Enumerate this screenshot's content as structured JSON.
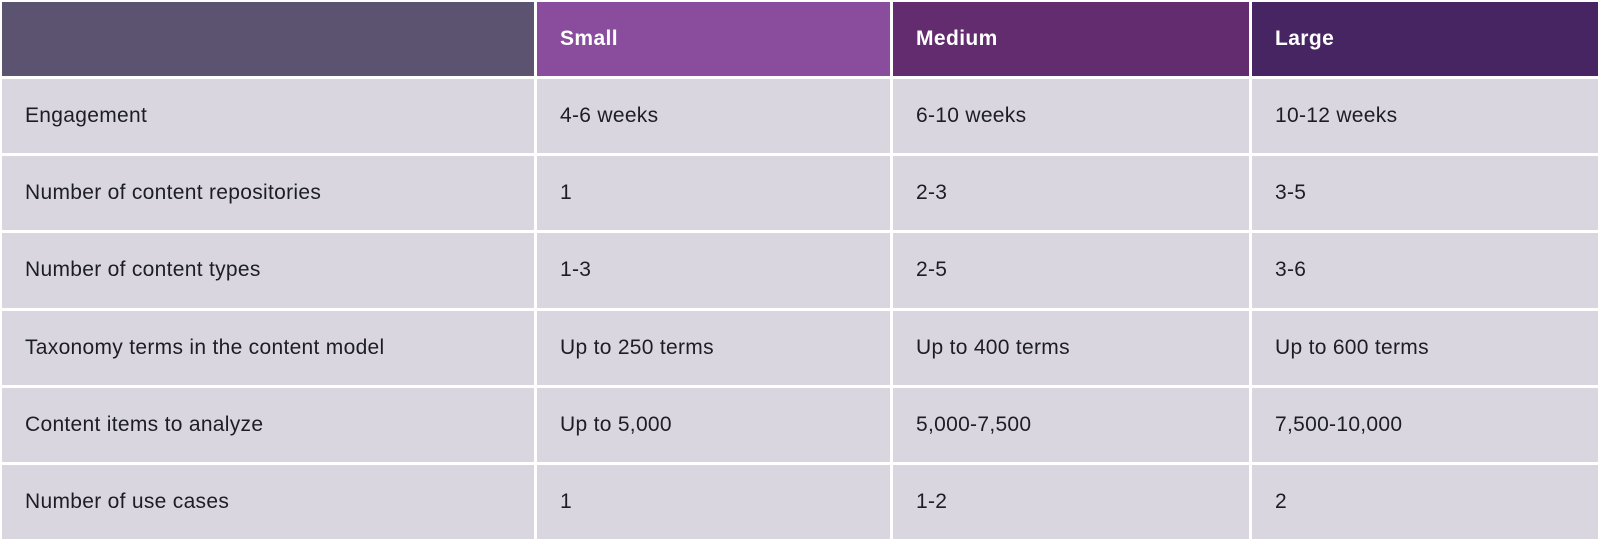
{
  "colors": {
    "corner_header_bg": "#5C5370",
    "small_header_bg": "#8A4C9D",
    "medium_header_bg": "#632C6E",
    "large_header_bg": "#472563",
    "body_cell_bg": "#D9D6E0",
    "divider": "#FFFFFF",
    "header_text": "#FFFFFF",
    "body_text": "#1D1D26"
  },
  "table": {
    "column_headers": [
      "",
      "Small",
      "Medium",
      "Large"
    ],
    "rows": [
      {
        "label": "Engagement",
        "values": [
          "4-6 weeks",
          "6-10 weeks",
          "10-12 weeks"
        ]
      },
      {
        "label": "Number of content repositories",
        "values": [
          "1",
          "2-3",
          "3-5"
        ]
      },
      {
        "label": "Number of content types",
        "values": [
          "1-3",
          "2-5",
          "3-6"
        ]
      },
      {
        "label": "Taxonomy terms in the content model",
        "values": [
          "Up to 250 terms",
          "Up to 400 terms",
          "Up to 600 terms"
        ]
      },
      {
        "label": "Content items to analyze",
        "values": [
          "Up to 5,000",
          "5,000-7,500",
          "7,500-10,000"
        ]
      },
      {
        "label": "Number of use cases",
        "values": [
          "1",
          "1-2",
          "2"
        ]
      }
    ]
  },
  "chart_data": {
    "type": "table",
    "columns": [
      "",
      "Small",
      "Medium",
      "Large"
    ],
    "rows": [
      [
        "Engagement",
        "4-6 weeks",
        "6-10 weeks",
        "10-12 weeks"
      ],
      [
        "Number of content repositories",
        "1",
        "2-3",
        "3-5"
      ],
      [
        "Number of content types",
        "1-3",
        "2-5",
        "3-6"
      ],
      [
        "Taxonomy terms in the content model",
        "Up to 250 terms",
        "Up to 400 terms",
        "Up to 600 terms"
      ],
      [
        "Content items to analyze",
        "Up to 5,000",
        "5,000-7,500",
        "7,500-10,000"
      ],
      [
        "Number of use cases",
        "1",
        "1-2",
        "2"
      ]
    ],
    "title": "",
    "legend_position": "none",
    "grid": "white dividers between lavender cells"
  }
}
